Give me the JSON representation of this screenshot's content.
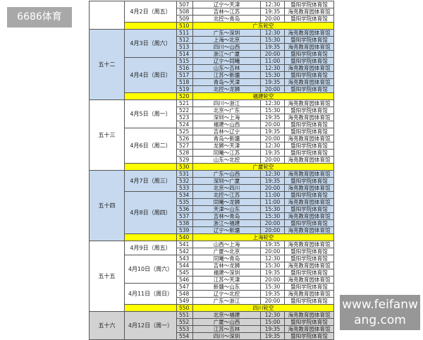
{
  "watermarks": {
    "top_left": "6686体育",
    "bottom_right": "www.feifanwang.com"
  },
  "colors": {
    "blue_group": "#c6d9ee",
    "gray_group": "#d2d2d2",
    "white_group": "#ffffff",
    "bye_row": "#ffff00"
  },
  "groups": [
    {
      "name": "",
      "color": "#ffffff",
      "days": [
        {
          "date": "4月2日（周五）",
          "matches": [
            {
              "no": "507",
              "match": "辽宁～天津",
              "time": "12:30",
              "venue": "暨阳学院体育馆"
            },
            {
              "no": "508",
              "match": "吉林～江苏",
              "time": "19:35",
              "venue": "海亮教育园体育馆"
            },
            {
              "no": "509",
              "match": "北控～青岛",
              "time": "20:00",
              "venue": "暨阳学院体育馆"
            }
          ]
        }
      ],
      "bye": {
        "no": "510",
        "text": "广东轮空"
      }
    },
    {
      "name": "五十二",
      "color": "#c6d9ee",
      "days": [
        {
          "date": "4月3日（周六）",
          "matches": [
            {
              "no": "511",
              "match": "广东～深圳",
              "time": "12:30",
              "venue": "海亮教育园体育馆"
            },
            {
              "no": "512",
              "match": "上海～北京",
              "time": "15:30",
              "venue": "暨阳学院体育馆"
            },
            {
              "no": "513",
              "match": "四川～山西",
              "time": "19:35",
              "venue": "海亮教育园体育馆"
            },
            {
              "no": "514",
              "match": "浙江～广厦",
              "time": "20:00",
              "venue": "暨阳学院体育馆"
            }
          ]
        },
        {
          "date": "4月4日（周日）",
          "matches": [
            {
              "no": "515",
              "match": "辽宁～同曦",
              "time": "11:00",
              "venue": "暨阳学院体育馆"
            },
            {
              "no": "516",
              "match": "山东～吉林",
              "time": "12:30",
              "venue": "海亮教育园体育馆"
            },
            {
              "no": "517",
              "match": "江苏～新疆",
              "time": "15:30",
              "venue": "暨阳学院体育馆"
            },
            {
              "no": "518",
              "match": "青岛～天津",
              "time": "19:35",
              "venue": "海亮教育园体育馆"
            },
            {
              "no": "519",
              "match": "北控～龙狮",
              "time": "20:00",
              "venue": "暨阳学院体育馆"
            }
          ]
        }
      ],
      "bye": {
        "no": "520",
        "text": "福建轮空"
      }
    },
    {
      "name": "五十三",
      "color": "#ffffff",
      "days": [
        {
          "date": "4月5日（周一）",
          "matches": [
            {
              "no": "521",
              "match": "四川～浙江",
              "time": "12:30",
              "venue": "海亮教育园体育馆"
            },
            {
              "no": "522",
              "match": "北京～广东",
              "time": "15:30",
              "venue": "暨阳学院体育馆"
            },
            {
              "no": "523",
              "match": "深圳～上海",
              "time": "19:35",
              "venue": "海亮教育园体育馆"
            },
            {
              "no": "524",
              "match": "福建～山西",
              "time": "20:00",
              "venue": "暨阳学院体育馆"
            }
          ]
        },
        {
          "date": "4月6日（周二）",
          "matches": [
            {
              "no": "525",
              "match": "吉林～辽宁",
              "time": "19:35",
              "venue": "暨阳学院体育馆"
            },
            {
              "no": "526",
              "match": "青岛～新疆",
              "time": "20:00",
              "venue": "海亮教育园体育馆"
            },
            {
              "no": "527",
              "match": "龙狮～天津",
              "time": "12:30",
              "venue": "暨阳学院体育馆"
            },
            {
              "no": "528",
              "match": "同曦～江苏",
              "time": "19:35",
              "venue": "暨阳学院体育馆"
            },
            {
              "no": "529",
              "match": "山东～北控",
              "time": "20:00",
              "venue": "海亮教育园体育馆"
            }
          ]
        }
      ],
      "bye": {
        "no": "530",
        "text": "广厦轮空"
      }
    },
    {
      "name": "五十四",
      "color": "#c6d9ee",
      "days": [
        {
          "date": "4月7日（周三）",
          "matches": [
            {
              "no": "531",
              "match": "广东～山西",
              "time": "12:30",
              "venue": "海亮教育园体育馆"
            },
            {
              "no": "532",
              "match": "深圳～广厦",
              "time": "19:35",
              "venue": "暨阳学院体育馆"
            },
            {
              "no": "533",
              "match": "北京～四川",
              "time": "20:00",
              "venue": "海亮教育园体育馆"
            }
          ]
        },
        {
          "date": "4月8日（周四）",
          "matches": [
            {
              "no": "534",
              "match": "北控～江苏",
              "time": "11:00",
              "venue": "暨阳学院体育馆"
            },
            {
              "no": "535",
              "match": "同曦～龙狮",
              "time": "11:00",
              "venue": "海亮教育园体育馆"
            },
            {
              "no": "536",
              "match": "天津～山东",
              "time": "15:30",
              "venue": "暨阳学院体育馆"
            },
            {
              "no": "537",
              "match": "吉林～青岛",
              "time": "15:30",
              "venue": "海亮教育园体育馆"
            },
            {
              "no": "538",
              "match": "浙江～福建",
              "time": "20:00",
              "venue": "暨阳学院体育馆"
            },
            {
              "no": "539",
              "match": "辽宁～新疆",
              "time": "20:00",
              "venue": "海亮教育园体育馆"
            }
          ]
        }
      ],
      "bye": {
        "no": "540",
        "text": "上海轮空"
      }
    },
    {
      "name": "五十五",
      "color": "#ffffff",
      "days": [
        {
          "date": "4月9日（周五）",
          "matches": [
            {
              "no": "541",
              "match": "山西～上海",
              "time": "19:35",
              "venue": "海亮教育园体育馆"
            },
            {
              "no": "542",
              "match": "广厦～北京",
              "time": "20:00",
              "venue": "暨阳学院体育馆"
            }
          ]
        },
        {
          "date": "4月10日（周六）",
          "matches": [
            {
              "no": "543",
              "match": "同曦～青岛",
              "time": "12:30",
              "venue": "暨阳学院体育馆"
            },
            {
              "no": "544",
              "match": "吉林～龙狮",
              "time": "15:30",
              "venue": "海亮教育园体育馆"
            },
            {
              "no": "545",
              "match": "福建～深圳",
              "time": "19:35",
              "venue": "暨阳学院体育馆"
            },
            {
              "no": "546",
              "match": "江苏～天津",
              "time": "20:00",
              "venue": "海亮教育园体育馆"
            }
          ]
        },
        {
          "date": "4月11日（周日）",
          "matches": [
            {
              "no": "547",
              "match": "新疆～山东",
              "time": "15:30",
              "venue": "暨阳学院体育馆"
            },
            {
              "no": "548",
              "match": "辽宁～北控",
              "time": "19:35",
              "venue": "海亮教育园体育馆"
            },
            {
              "no": "549",
              "match": "广东～浙江",
              "time": "20:00",
              "venue": "暨阳学院体育馆"
            }
          ]
        }
      ],
      "bye": {
        "no": "550",
        "text": "四川轮空"
      }
    },
    {
      "name": "五十六",
      "color": "#d2d2d2",
      "days": [
        {
          "date": "4月12日（周一）",
          "matches": [
            {
              "no": "551",
              "match": "北京～福建",
              "time": "12:30",
              "venue": "海亮教育园体育馆"
            },
            {
              "no": "552",
              "match": "广厦～山西",
              "time": "15:00",
              "venue": "暨阳学院体育馆"
            },
            {
              "no": "553",
              "match": "江苏～吉林",
              "time": "19:35",
              "venue": "海亮教育园体育馆"
            },
            {
              "no": "554",
              "match": "四川～深圳",
              "time": "19:35",
              "venue": "暨阳学院体育馆"
            }
          ]
        }
      ],
      "bye": null
    }
  ]
}
